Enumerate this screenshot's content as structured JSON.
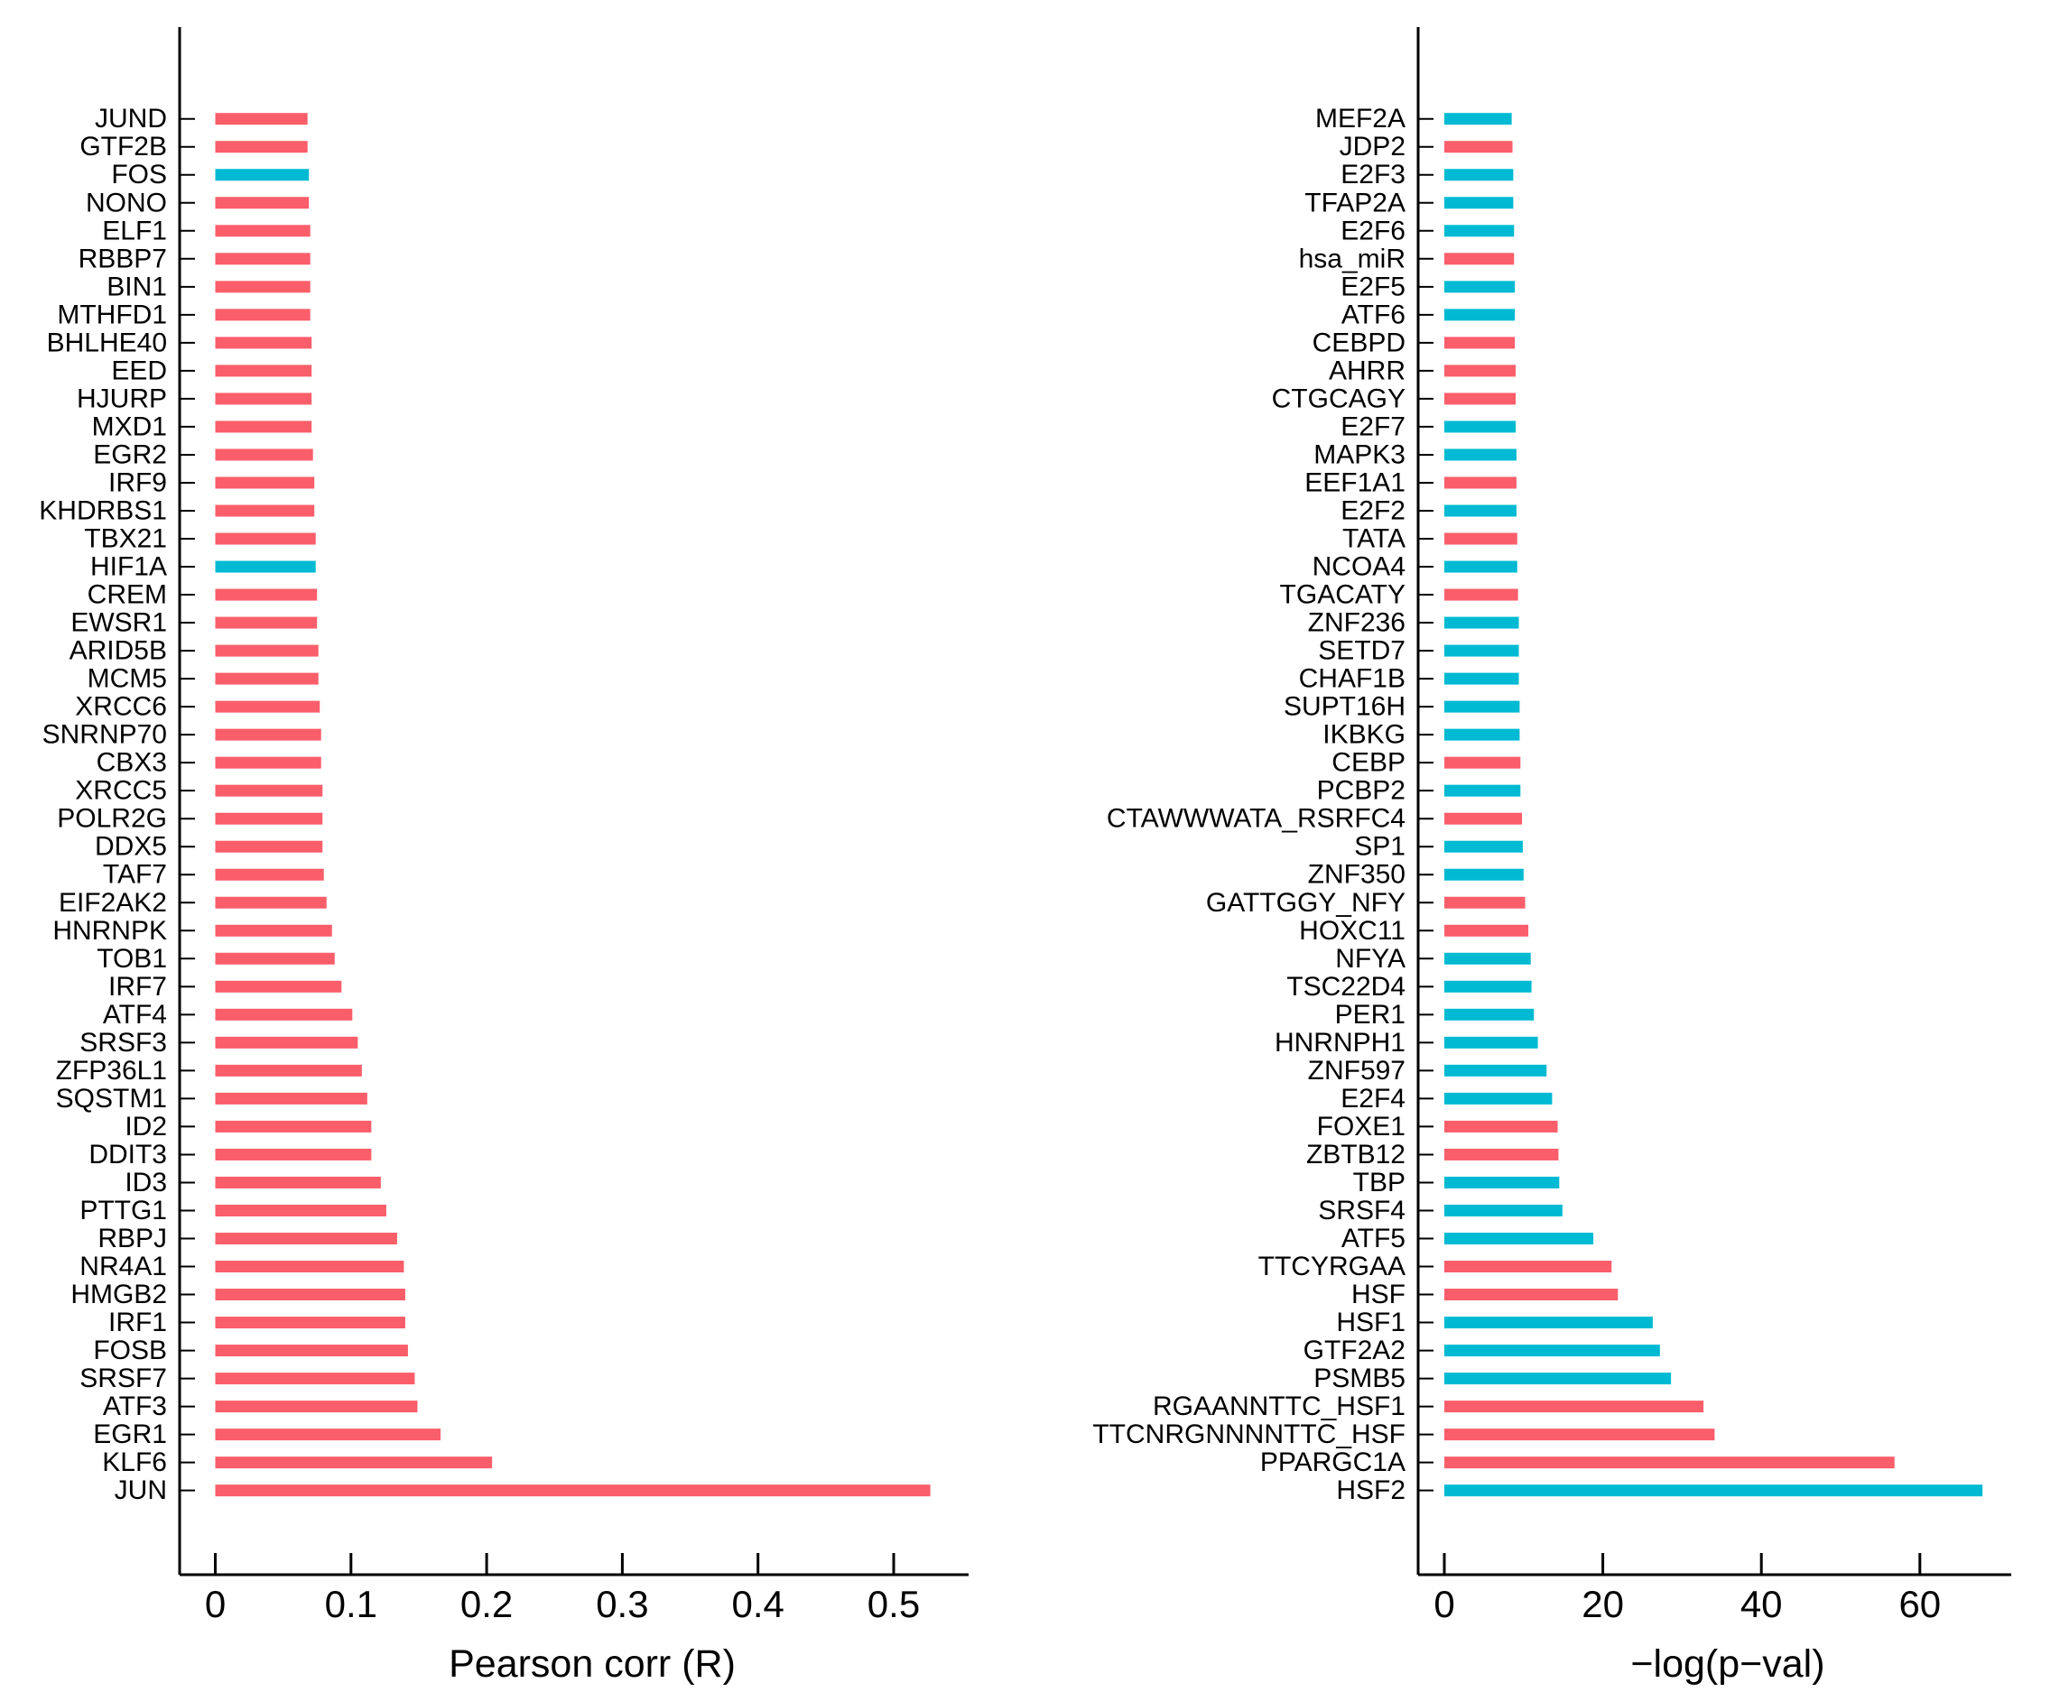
{
  "figure": {
    "background": "#ffffff",
    "description": "Two-panel horizontal bar chart of gene/motif enrichment"
  },
  "colors": {
    "red": "#FA5E6A",
    "cyan": "#00BAD3",
    "axis": "#000000",
    "text": "#000000"
  },
  "chart_data": [
    {
      "type": "bar",
      "orientation": "horizontal",
      "title": "",
      "xlabel": "Pearson corr (R)",
      "ylabel": "",
      "grid": false,
      "legend": null,
      "xlim": [
        -0.026,
        0.553
      ],
      "xticks": [
        0,
        0.1,
        0.2,
        0.3,
        0.4,
        0.5
      ],
      "xtick_labels": [
        "0",
        "0.1",
        "0.2",
        "0.3",
        "0.4",
        "0.5"
      ],
      "categories": [
        "JUND",
        "GTF2B",
        "FOS",
        "NONO",
        "ELF1",
        "RBBP7",
        "BIN1",
        "MTHFD1",
        "BHLHE40",
        "EED",
        "HJURP",
        "MXD1",
        "EGR2",
        "IRF9",
        "KHDRBS1",
        "TBX21",
        "HIF1A",
        "CREM",
        "EWSR1",
        "ARID5B",
        "MCM5",
        "XRCC6",
        "SNRNP70",
        "CBX3",
        "XRCC5",
        "POLR2G",
        "DDX5",
        "TAF7",
        "EIF2AK2",
        "HNRNPK",
        "TOB1",
        "IRF7",
        "ATF4",
        "SRSF3",
        "ZFP36L1",
        "SQSTM1",
        "ID2",
        "DDIT3",
        "ID3",
        "PTTG1",
        "RBPJ",
        "NR4A1",
        "HMGB2",
        "IRF1",
        "FOSB",
        "SRSF7",
        "ATF3",
        "EGR1",
        "KLF6",
        "JUN"
      ],
      "values": [
        0.068,
        0.068,
        0.069,
        0.069,
        0.07,
        0.07,
        0.07,
        0.07,
        0.071,
        0.071,
        0.071,
        0.071,
        0.072,
        0.073,
        0.073,
        0.074,
        0.074,
        0.075,
        0.075,
        0.076,
        0.076,
        0.077,
        0.078,
        0.078,
        0.079,
        0.079,
        0.079,
        0.08,
        0.082,
        0.086,
        0.088,
        0.093,
        0.101,
        0.105,
        0.108,
        0.112,
        0.115,
        0.115,
        0.122,
        0.126,
        0.134,
        0.139,
        0.14,
        0.14,
        0.142,
        0.147,
        0.149,
        0.166,
        0.204,
        0.527
      ],
      "bar_colors": [
        "red",
        "red",
        "cyan",
        "red",
        "red",
        "red",
        "red",
        "red",
        "red",
        "red",
        "red",
        "red",
        "red",
        "red",
        "red",
        "red",
        "cyan",
        "red",
        "red",
        "red",
        "red",
        "red",
        "red",
        "red",
        "red",
        "red",
        "red",
        "red",
        "red",
        "red",
        "red",
        "red",
        "red",
        "red",
        "red",
        "red",
        "red",
        "red",
        "red",
        "red",
        "red",
        "red",
        "red",
        "red",
        "red",
        "red",
        "red",
        "red",
        "red",
        "red"
      ]
    },
    {
      "type": "bar",
      "orientation": "horizontal",
      "title": "",
      "xlabel": "−log(p−val)",
      "ylabel": "",
      "grid": false,
      "legend": null,
      "xlim": [
        -3.3,
        71.5
      ],
      "xticks": [
        0,
        20,
        40,
        60
      ],
      "xtick_labels": [
        "0",
        "20",
        "40",
        "60"
      ],
      "categories": [
        "MEF2A",
        "JDP2",
        "E2F3",
        "TFAP2A",
        "E2F6",
        "hsa_miR",
        "E2F5",
        "ATF6",
        "CEBPD",
        "AHRR",
        "CTGCAGY",
        "E2F7",
        "MAPK3",
        "EEF1A1",
        "E2F2",
        "TATA",
        "NCOA4",
        "TGACATY",
        "ZNF236",
        "SETD7",
        "CHAF1B",
        "SUPT16H",
        "IKBKG",
        "CEBP",
        "PCBP2",
        "CTAWWWATA_RSRFC4",
        "SP1",
        "ZNF350",
        "GATTGGY_NFY",
        "HOXC11",
        "NFYA",
        "TSC22D4",
        "PER1",
        "HNRNPH1",
        "ZNF597",
        "E2F4",
        "FOXE1",
        "ZBTB12",
        "TBP",
        "SRSF4",
        "ATF5",
        "TTCYRGAA",
        "HSF",
        "HSF1",
        "GTF2A2",
        "PSMB5",
        "RGAANNTTC_HSF1",
        "TTCNRGNNNNTTC_HSF",
        "PPARGC1A",
        "HSF2"
      ],
      "values": [
        8.5,
        8.6,
        8.7,
        8.7,
        8.8,
        8.8,
        8.9,
        8.9,
        8.9,
        9.0,
        9.0,
        9.0,
        9.1,
        9.1,
        9.1,
        9.2,
        9.2,
        9.3,
        9.4,
        9.4,
        9.4,
        9.5,
        9.5,
        9.6,
        9.6,
        9.8,
        9.9,
        10.0,
        10.2,
        10.6,
        10.9,
        11.0,
        11.3,
        11.8,
        12.9,
        13.6,
        14.3,
        14.4,
        14.5,
        14.9,
        18.8,
        21.1,
        21.9,
        26.3,
        27.2,
        28.6,
        32.7,
        34.1,
        56.8,
        67.9
      ],
      "bar_colors": [
        "cyan",
        "red",
        "cyan",
        "cyan",
        "cyan",
        "red",
        "cyan",
        "cyan",
        "red",
        "red",
        "red",
        "cyan",
        "cyan",
        "red",
        "cyan",
        "red",
        "cyan",
        "red",
        "cyan",
        "cyan",
        "cyan",
        "cyan",
        "cyan",
        "red",
        "cyan",
        "red",
        "cyan",
        "cyan",
        "red",
        "red",
        "cyan",
        "cyan",
        "cyan",
        "cyan",
        "cyan",
        "cyan",
        "red",
        "red",
        "cyan",
        "cyan",
        "cyan",
        "red",
        "red",
        "cyan",
        "cyan",
        "cyan",
        "red",
        "red",
        "red",
        "cyan"
      ]
    }
  ]
}
